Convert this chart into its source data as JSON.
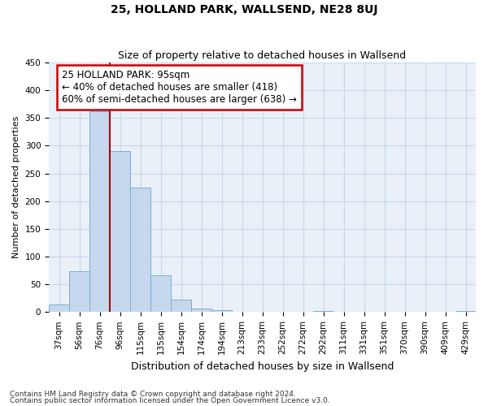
{
  "title": "25, HOLLAND PARK, WALLSEND, NE28 8UJ",
  "subtitle": "Size of property relative to detached houses in Wallsend",
  "xlabel": "Distribution of detached houses by size in Wallsend",
  "ylabel": "Number of detached properties",
  "footnote1": "Contains HM Land Registry data © Crown copyright and database right 2024.",
  "footnote2": "Contains public sector information licensed under the Open Government Licence v3.0.",
  "categories": [
    "37sqm",
    "56sqm",
    "76sqm",
    "96sqm",
    "115sqm",
    "135sqm",
    "154sqm",
    "174sqm",
    "194sqm",
    "213sqm",
    "233sqm",
    "252sqm",
    "272sqm",
    "292sqm",
    "311sqm",
    "331sqm",
    "351sqm",
    "370sqm",
    "390sqm",
    "409sqm",
    "429sqm"
  ],
  "values": [
    13,
    74,
    362,
    290,
    224,
    67,
    22,
    7,
    4,
    0,
    0,
    0,
    0,
    2,
    0,
    0,
    0,
    0,
    0,
    0,
    2
  ],
  "bar_color": "#c5d8ed",
  "bar_edgecolor": "#7bafd4",
  "property_line_x": 2.5,
  "annotation_title": "25 HOLLAND PARK: 95sqm",
  "annotation_line1": "← 40% of detached houses are smaller (418)",
  "annotation_line2": "60% of semi-detached houses are larger (638) →",
  "annotation_box_color": "#ffffff",
  "annotation_box_edgecolor": "#cc0000",
  "vline_color": "#aa0000",
  "grid_color": "#c8d8e8",
  "background_color": "#eaf0f8",
  "ylim": [
    0,
    450
  ],
  "yticks": [
    0,
    50,
    100,
    150,
    200,
    250,
    300,
    350,
    400,
    450
  ],
  "title_fontsize": 10,
  "subtitle_fontsize": 9,
  "ylabel_fontsize": 8,
  "xlabel_fontsize": 9,
  "tick_fontsize": 7.5,
  "footnote_fontsize": 6.5
}
